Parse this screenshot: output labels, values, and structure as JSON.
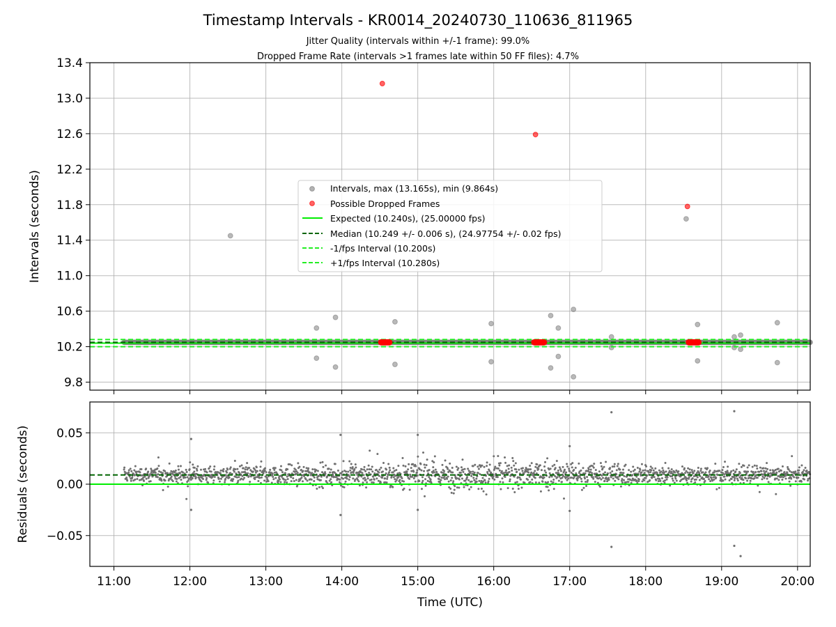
{
  "chart_data": [
    {
      "type": "scatter",
      "title": "Timestamp Intervals - KR0014_20240730_110636_811965",
      "subtitle_lines": [
        "Jitter Quality (intervals within +/-1 frame): 99.0%",
        "Dropped Frame Rate (intervals >1 frames late within 50 FF files): 4.7%"
      ],
      "xlabel": "",
      "ylabel": "Intervals (seconds)",
      "xlim": [
        "10:41",
        "20:10"
      ],
      "ylim": [
        9.71,
        13.4
      ],
      "yticks": [
        "9.8",
        "10.2",
        "10.6",
        "11.0",
        "11.4",
        "11.8",
        "12.2",
        "12.6",
        "13.0",
        "13.4"
      ],
      "grid": true,
      "legend_position": "center",
      "series": [
        {
          "name": "Intervals, max (13.165s), min (9.864s)",
          "kind": "scatter",
          "color": "#808080",
          "baseline": {
            "value": 10.249,
            "from": "11:08",
            "to": "20:10"
          },
          "points": [
            {
              "x": "12:32",
              "y": 11.45
            },
            {
              "x": "13:40",
              "y": 10.41
            },
            {
              "x": "13:40",
              "y": 10.07
            },
            {
              "x": "13:55",
              "y": 10.53
            },
            {
              "x": "13:55",
              "y": 9.97
            },
            {
              "x": "14:42",
              "y": 10.48
            },
            {
              "x": "14:42",
              "y": 10.0
            },
            {
              "x": "15:58",
              "y": 10.46
            },
            {
              "x": "15:58",
              "y": 10.03
            },
            {
              "x": "16:45",
              "y": 10.55
            },
            {
              "x": "16:45",
              "y": 9.96
            },
            {
              "x": "16:51",
              "y": 10.41
            },
            {
              "x": "16:51",
              "y": 10.09
            },
            {
              "x": "17:03",
              "y": 10.62
            },
            {
              "x": "17:03",
              "y": 9.86
            },
            {
              "x": "17:33",
              "y": 10.31
            },
            {
              "x": "17:33",
              "y": 10.19
            },
            {
              "x": "18:32",
              "y": 11.64
            },
            {
              "x": "18:41",
              "y": 10.45
            },
            {
              "x": "18:41",
              "y": 10.04
            },
            {
              "x": "19:10",
              "y": 10.31
            },
            {
              "x": "19:10",
              "y": 10.19
            },
            {
              "x": "19:15",
              "y": 10.33
            },
            {
              "x": "19:15",
              "y": 10.17
            },
            {
              "x": "19:44",
              "y": 10.47
            },
            {
              "x": "19:44",
              "y": 10.02
            }
          ]
        },
        {
          "name": "Possible Dropped Frames",
          "kind": "scatter",
          "color": "#ff0000",
          "clusters": [
            {
              "from": "14:31",
              "to": "14:38",
              "y": 10.249
            },
            {
              "from": "16:32",
              "to": "16:40",
              "y": 10.249
            },
            {
              "from": "18:34",
              "to": "18:42",
              "y": 10.249
            }
          ],
          "points": [
            {
              "x": "14:32",
              "y": 13.165
            },
            {
              "x": "16:33",
              "y": 12.59
            },
            {
              "x": "18:33",
              "y": 11.78
            }
          ]
        },
        {
          "name": "Expected (10.240s), (25.00000 fps)",
          "kind": "hline",
          "y": 10.24,
          "color": "#00ee00",
          "style": "solid"
        },
        {
          "name": "Median (10.249 +/- 0.006 s), (24.97754 +/- 0.02 fps)",
          "kind": "hline",
          "y": 10.249,
          "color": "#006400",
          "style": "dashed"
        },
        {
          "name": "-1/fps Interval (10.200s)",
          "kind": "hline",
          "y": 10.2,
          "color": "#22ee22",
          "style": "dashed"
        },
        {
          "name": "+1/fps Interval (10.280s)",
          "kind": "hline",
          "y": 10.28,
          "color": "#22ee22",
          "style": "dashed"
        }
      ]
    },
    {
      "type": "scatter",
      "xlabel": "Time (UTC)",
      "ylabel": "Residuals (seconds)",
      "xlim": [
        "10:41",
        "20:10"
      ],
      "ylim": [
        -0.08,
        0.08
      ],
      "xticks": [
        "11:00",
        "12:00",
        "13:00",
        "14:00",
        "15:00",
        "16:00",
        "17:00",
        "18:00",
        "19:00",
        "20:00"
      ],
      "yticks": [
        "−0.05",
        "0.00",
        "0.05"
      ],
      "yticks_values": [
        -0.05,
        0.0,
        0.05
      ],
      "grid": true,
      "series": [
        {
          "kind": "scatter",
          "color": "#707070",
          "description_points": "dense residual band around 0.009 s from 11:08 to 20:10",
          "band": {
            "center": 0.009,
            "typical_low": -0.01,
            "typical_high": 0.025,
            "from": "11:08",
            "to": "20:10"
          },
          "outliers": [
            {
              "x": "12:01",
              "y": 0.044
            },
            {
              "x": "12:01",
              "y": -0.025
            },
            {
              "x": "13:59",
              "y": 0.048
            },
            {
              "x": "13:59",
              "y": -0.03
            },
            {
              "x": "15:00",
              "y": 0.048
            },
            {
              "x": "15:00",
              "y": -0.025
            },
            {
              "x": "17:00",
              "y": 0.037
            },
            {
              "x": "17:00",
              "y": -0.026
            },
            {
              "x": "17:33",
              "y": 0.07
            },
            {
              "x": "17:33",
              "y": -0.061
            },
            {
              "x": "19:10",
              "y": 0.071
            },
            {
              "x": "19:10",
              "y": -0.06
            },
            {
              "x": "19:15",
              "y": -0.07
            }
          ]
        },
        {
          "kind": "hline",
          "y": 0.0,
          "color": "#00ee00",
          "style": "solid"
        },
        {
          "kind": "hline",
          "y": 0.009,
          "color": "#006400",
          "style": "dashed"
        }
      ]
    }
  ]
}
